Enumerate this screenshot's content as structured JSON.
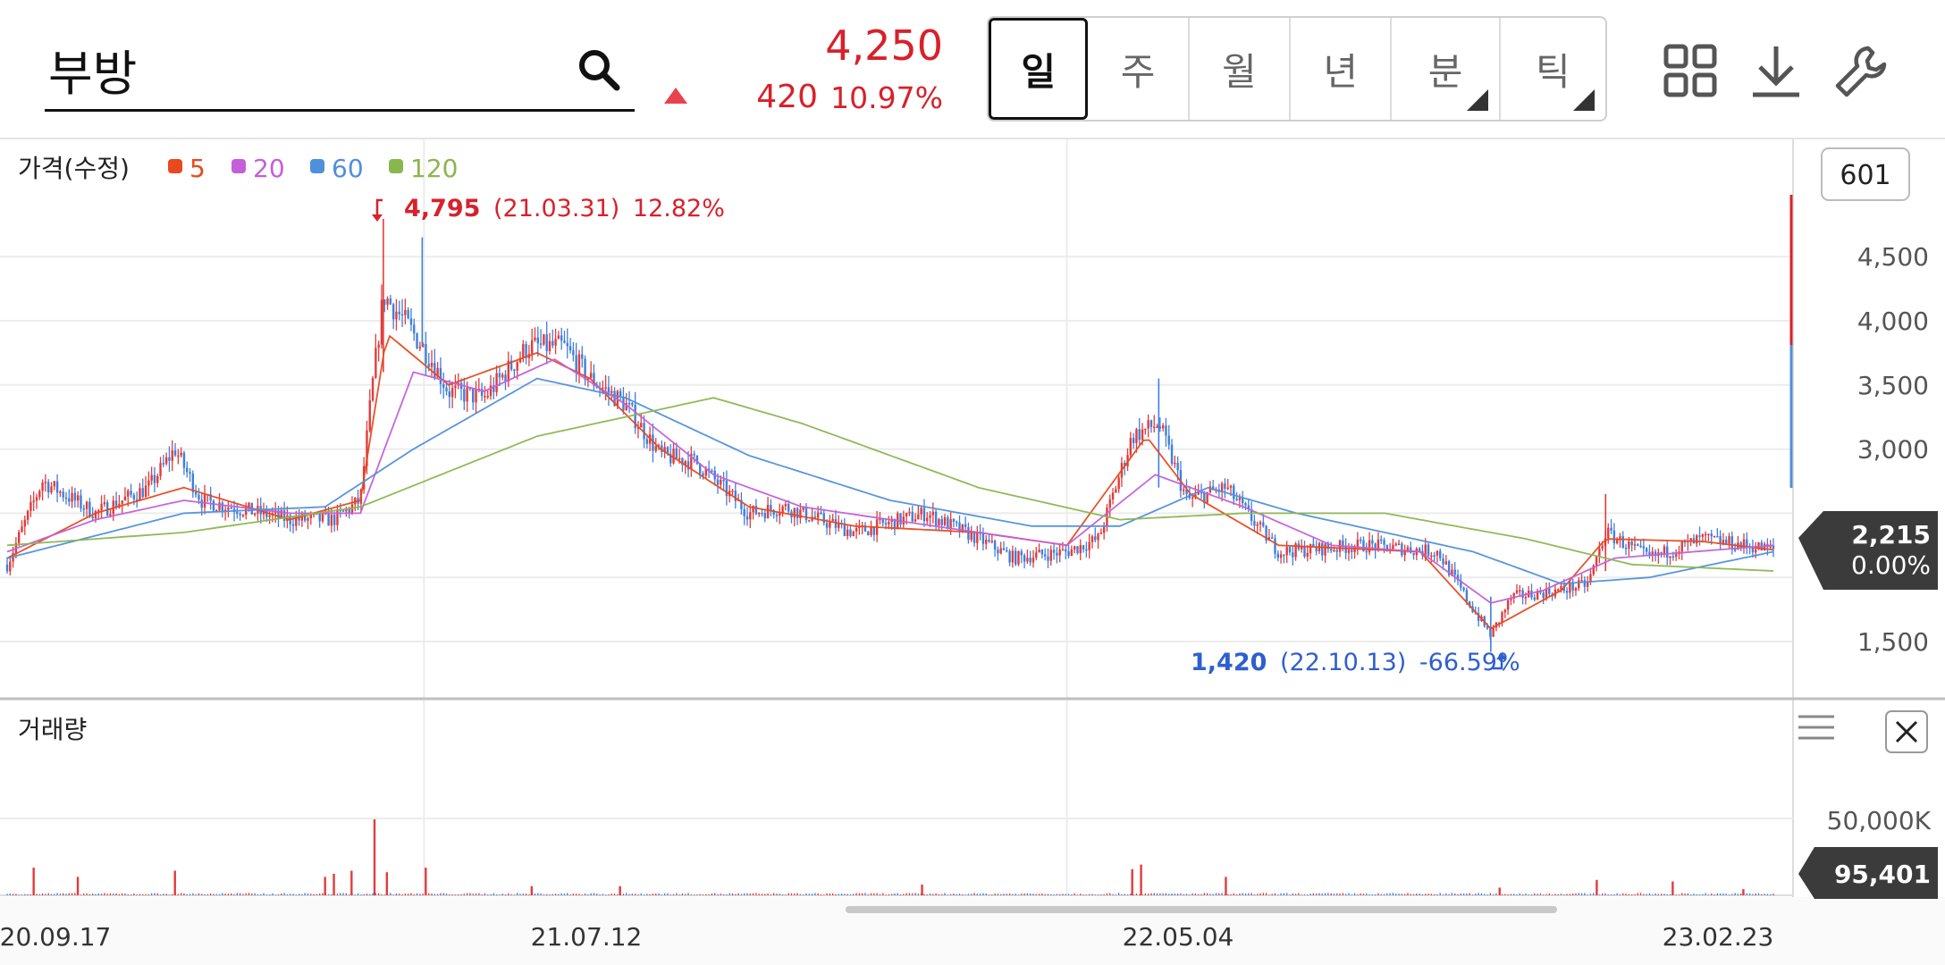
{
  "search": {
    "value": "부방"
  },
  "quote": {
    "price": "4,250",
    "change": "420",
    "rate": "10.97%",
    "direction_color": "#d7212b"
  },
  "periods": [
    {
      "label": "일",
      "active": true,
      "submenu": false
    },
    {
      "label": "주",
      "active": false,
      "submenu": false
    },
    {
      "label": "월",
      "active": false,
      "submenu": false
    },
    {
      "label": "년",
      "active": false,
      "submenu": false
    },
    {
      "label": "분",
      "active": false,
      "submenu": true
    },
    {
      "label": "틱",
      "active": false,
      "submenu": true
    }
  ],
  "toolbar": {
    "icons": [
      "grid-icon",
      "download-icon",
      "wrench-icon"
    ]
  },
  "count_badge": "601",
  "legend": {
    "title": "가격(수정)",
    "items": [
      {
        "label": "5",
        "color": "#e8491d"
      },
      {
        "label": "20",
        "color": "#c45fd8"
      },
      {
        "label": "60",
        "color": "#4f8fdb"
      },
      {
        "label": "120",
        "color": "#8ab64e"
      }
    ]
  },
  "annotations": {
    "high": {
      "value": "4,795",
      "date": "(21.03.31)",
      "rate": "12.82%",
      "color": "#d7212b"
    },
    "low": {
      "value": "1,420",
      "date": "(22.10.13)",
      "rate": "-66.59%",
      "color": "#2f5fd0"
    }
  },
  "current_tag": {
    "price": "2,215",
    "rate": "0.00%"
  },
  "volume_panel": {
    "title": "거래량",
    "y_label": "50,000K",
    "current": "95,401"
  },
  "chart_data": {
    "type": "candlestick",
    "x_ticks": [
      "20.09.17",
      "21.07.12",
      "22.05.04",
      "23.02.23"
    ],
    "y_ticks": [
      "1,500",
      "2,000",
      "2,500",
      "3,000",
      "3,500",
      "4,000",
      "4,500"
    ],
    "ylim": [
      1200,
      5000
    ],
    "price_path": [
      [
        0,
        2100
      ],
      [
        0.02,
        2750
      ],
      [
        0.05,
        2500
      ],
      [
        0.08,
        2700
      ],
      [
        0.095,
        3000
      ],
      [
        0.11,
        2600
      ],
      [
        0.16,
        2450
      ],
      [
        0.185,
        2450
      ],
      [
        0.2,
        2600
      ],
      [
        0.206,
        3400
      ],
      [
        0.213,
        4200
      ],
      [
        0.225,
        4000
      ],
      [
        0.24,
        3700
      ],
      [
        0.25,
        3450
      ],
      [
        0.27,
        3400
      ],
      [
        0.295,
        3800
      ],
      [
        0.315,
        3800
      ],
      [
        0.33,
        3550
      ],
      [
        0.35,
        3350
      ],
      [
        0.37,
        2950
      ],
      [
        0.39,
        2900
      ],
      [
        0.42,
        2500
      ],
      [
        0.44,
        2550
      ],
      [
        0.48,
        2350
      ],
      [
        0.52,
        2500
      ],
      [
        0.55,
        2300
      ],
      [
        0.57,
        2150
      ],
      [
        0.6,
        2200
      ],
      [
        0.618,
        2300
      ],
      [
        0.637,
        3100
      ],
      [
        0.652,
        3200
      ],
      [
        0.668,
        2600
      ],
      [
        0.69,
        2700
      ],
      [
        0.72,
        2200
      ],
      [
        0.77,
        2250
      ],
      [
        0.81,
        2200
      ],
      [
        0.83,
        1750
      ],
      [
        0.84,
        1550
      ],
      [
        0.852,
        1850
      ],
      [
        0.88,
        1900
      ],
      [
        0.895,
        1950
      ],
      [
        0.905,
        2350
      ],
      [
        0.93,
        2150
      ],
      [
        0.96,
        2300
      ],
      [
        1.0,
        2215
      ]
    ],
    "ma5": [
      [
        0,
        2150
      ],
      [
        0.05,
        2500
      ],
      [
        0.1,
        2700
      ],
      [
        0.16,
        2450
      ],
      [
        0.2,
        2600
      ],
      [
        0.215,
        3900
      ],
      [
        0.25,
        3500
      ],
      [
        0.3,
        3750
      ],
      [
        0.33,
        3550
      ],
      [
        0.37,
        3000
      ],
      [
        0.42,
        2550
      ],
      [
        0.48,
        2400
      ],
      [
        0.55,
        2350
      ],
      [
        0.6,
        2250
      ],
      [
        0.645,
        3100
      ],
      [
        0.67,
        2650
      ],
      [
        0.72,
        2250
      ],
      [
        0.8,
        2200
      ],
      [
        0.84,
        1600
      ],
      [
        0.88,
        1900
      ],
      [
        0.905,
        2300
      ],
      [
        0.96,
        2280
      ],
      [
        1.0,
        2215
      ]
    ],
    "ma20": [
      [
        0,
        2200
      ],
      [
        0.05,
        2450
      ],
      [
        0.1,
        2600
      ],
      [
        0.16,
        2500
      ],
      [
        0.2,
        2500
      ],
      [
        0.23,
        3600
      ],
      [
        0.27,
        3450
      ],
      [
        0.31,
        3700
      ],
      [
        0.35,
        3350
      ],
      [
        0.4,
        2800
      ],
      [
        0.45,
        2550
      ],
      [
        0.5,
        2450
      ],
      [
        0.6,
        2250
      ],
      [
        0.65,
        2800
      ],
      [
        0.7,
        2550
      ],
      [
        0.75,
        2250
      ],
      [
        0.8,
        2200
      ],
      [
        0.84,
        1800
      ],
      [
        0.87,
        1900
      ],
      [
        0.91,
        2150
      ],
      [
        1.0,
        2250
      ]
    ],
    "ma60": [
      [
        0,
        2150
      ],
      [
        0.1,
        2500
      ],
      [
        0.18,
        2550
      ],
      [
        0.23,
        3000
      ],
      [
        0.3,
        3550
      ],
      [
        0.35,
        3400
      ],
      [
        0.42,
        2950
      ],
      [
        0.5,
        2600
      ],
      [
        0.58,
        2400
      ],
      [
        0.63,
        2400
      ],
      [
        0.68,
        2700
      ],
      [
        0.73,
        2500
      ],
      [
        0.78,
        2350
      ],
      [
        0.83,
        2200
      ],
      [
        0.88,
        1950
      ],
      [
        0.93,
        2000
      ],
      [
        1.0,
        2200
      ]
    ],
    "ma120": [
      [
        0,
        2250
      ],
      [
        0.1,
        2350
      ],
      [
        0.2,
        2550
      ],
      [
        0.3,
        3100
      ],
      [
        0.4,
        3400
      ],
      [
        0.45,
        3200
      ],
      [
        0.55,
        2700
      ],
      [
        0.63,
        2450
      ],
      [
        0.7,
        2500
      ],
      [
        0.78,
        2500
      ],
      [
        0.86,
        2300
      ],
      [
        0.92,
        2100
      ],
      [
        1.0,
        2050
      ]
    ],
    "volume_spikes": [
      [
        0.015,
        18
      ],
      [
        0.04,
        12
      ],
      [
        0.095,
        16
      ],
      [
        0.18,
        12
      ],
      [
        0.185,
        14
      ],
      [
        0.195,
        16
      ],
      [
        0.208,
        50
      ],
      [
        0.215,
        15
      ],
      [
        0.237,
        18
      ],
      [
        0.297,
        6
      ],
      [
        0.347,
        6
      ],
      [
        0.518,
        7
      ],
      [
        0.637,
        17
      ],
      [
        0.642,
        20
      ],
      [
        0.69,
        12
      ],
      [
        0.845,
        5
      ],
      [
        0.9,
        10
      ],
      [
        0.943,
        9
      ],
      [
        0.983,
        4
      ]
    ],
    "volume_ylim": [
      0,
      50
    ]
  }
}
